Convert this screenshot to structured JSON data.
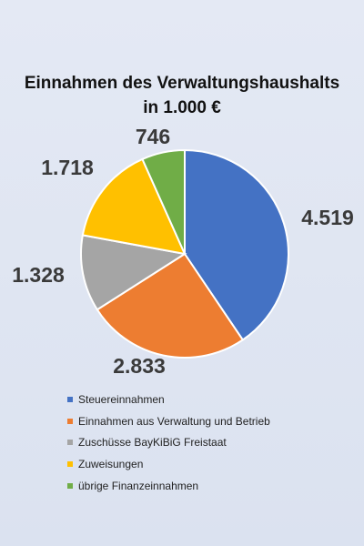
{
  "chart_data": {
    "type": "pie",
    "title": "Einnahmen des Verwaltungshaushalts",
    "subtitle": "in 1.000  €",
    "slices": [
      {
        "name": "Steuereinnahmen",
        "value": 4519,
        "label": "4.519",
        "color": "#4472c4"
      },
      {
        "name": "Einnahmen aus Verwaltung und Betrieb",
        "value": 2833,
        "label": "2.833",
        "color": "#ed7d31"
      },
      {
        "name": "Zuschüsse BayKiBiG Freistaat",
        "value": 1328,
        "label": "1.328",
        "color": "#a5a5a5"
      },
      {
        "name": "Zuweisungen",
        "value": 1718,
        "label": "1.718",
        "color": "#ffc000"
      },
      {
        "name": "übrige Finanzeinnahmen",
        "value": 746,
        "label": "746",
        "color": "#70ad47"
      }
    ],
    "legend_placement": "bottom"
  }
}
